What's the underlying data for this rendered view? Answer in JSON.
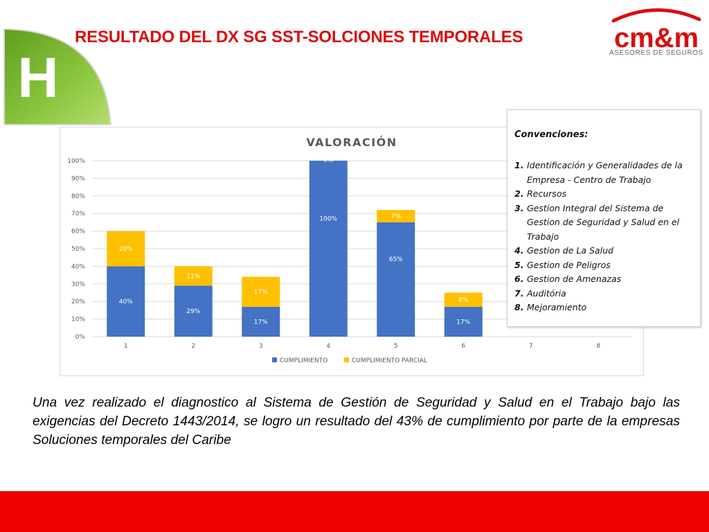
{
  "header": {
    "badge_letter": "H",
    "title": "RESULTADO DEL DX  SG SST-SOLCIONES TEMPORALES",
    "logo_text": "cm&m",
    "logo_subtitle": "ASESORES DE SEGUROS"
  },
  "colors": {
    "title_red": "#d90d0d",
    "footer_red": "#ee0000",
    "badge_green": "#7cbd2c",
    "cumplimiento": "#4472c4",
    "cumplimiento_parcial": "#ffc000"
  },
  "chart_data": {
    "type": "bar",
    "stacked": true,
    "title": "VALORACIÓN",
    "categories": [
      "1",
      "2",
      "3",
      "4",
      "5",
      "6",
      "7",
      "8"
    ],
    "series": [
      {
        "name": "CUMPLIMIENTO",
        "values": [
          40,
          29,
          17,
          100,
          65,
          17,
          0,
          0
        ],
        "labels": [
          "40%",
          "29%",
          "17%",
          "100%",
          "65%",
          "17%",
          "",
          ""
        ]
      },
      {
        "name": "CUMPLIMIENTO PARCIAL",
        "values": [
          20,
          11,
          17,
          0,
          7,
          8,
          0,
          0
        ],
        "labels": [
          "20%",
          "11%",
          "17%",
          "0%",
          "7%",
          "8%",
          "",
          ""
        ]
      }
    ],
    "ylim": [
      0,
      100
    ],
    "yticks": [
      "0%",
      "10%",
      "20%",
      "30%",
      "40%",
      "50%",
      "60%",
      "70%",
      "80%",
      "90%",
      "100%"
    ],
    "grid": true,
    "legend_position": "bottom"
  },
  "conventions": {
    "title": "Convenciones:",
    "items": [
      {
        "num": "1.",
        "text": "Identificación y Generalidades de la Empresa - Centro de Trabajo"
      },
      {
        "num": "2.",
        "text": "Recursos"
      },
      {
        "num": "3.",
        "text": "Gestion Integral del Sistema de Gestion de Seguridad y Salud en el Trabajo"
      },
      {
        "num": "4.",
        "text": "Gestion de La Salud"
      },
      {
        "num": "5.",
        "text": "Gestion de Peligros"
      },
      {
        "num": "6.",
        "text": "Gestion de Amenazas"
      },
      {
        "num": "7.",
        "text": "Auditória"
      },
      {
        "num": "8.",
        "text": "Mejoramiento"
      }
    ]
  },
  "summary": "Una vez realizado el diagnostico al Sistema de Gestión de Seguridad y Salud en el Trabajo bajo las exigencias del Decreto 1443/2014, se logro  un resultado del 43% de cumplimiento por parte de la empresas Soluciones temporales del Caribe"
}
